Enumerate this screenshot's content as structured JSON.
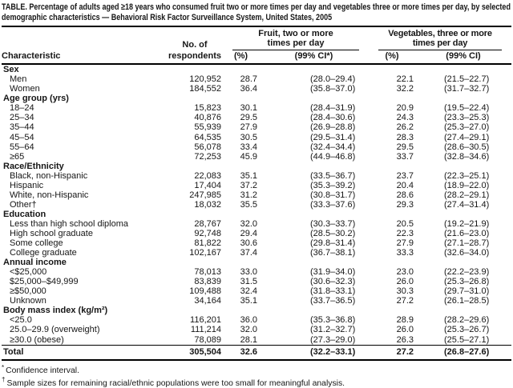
{
  "colors": {
    "background": "#ffffff",
    "text": "#161616",
    "rule": "#000000"
  },
  "title": "TABLE. Percentage of adults aged ≥18 years who consumed fruit two or more times per day and vegetables three or more times per day, by selected demographic characteristics — Behavioral Risk Factor Surveillance System, United States, 2005",
  "header": {
    "characteristic": "Characteristic",
    "respondents_line1": "No. of",
    "respondents_line2": "respondents",
    "fruit_group": "Fruit, two or more times per day",
    "veg_group": "Vegetables, three or more times per day",
    "fruit_pct": "(%)",
    "fruit_ci": "(99% CI*)",
    "veg_pct": "(%)",
    "veg_ci": "(99% CI)"
  },
  "table": {
    "sections": [
      {
        "header": "Sex",
        "rows": [
          {
            "label": "Men",
            "respondents": "120,952",
            "fruit_pct": "28.7",
            "fruit_ci": "(28.0–29.4)",
            "veg_pct": "22.1",
            "veg_ci": "(21.5–22.7)"
          },
          {
            "label": "Women",
            "respondents": "184,552",
            "fruit_pct": "36.4",
            "fruit_ci": "(35.8–37.0)",
            "veg_pct": "32.2",
            "veg_ci": "(31.7–32.7)"
          }
        ]
      },
      {
        "header": "Age group (yrs)",
        "rows": [
          {
            "label": "18–24",
            "respondents": "15,823",
            "fruit_pct": "30.1",
            "fruit_ci": "(28.4–31.9)",
            "veg_pct": "20.9",
            "veg_ci": "(19.5–22.4)"
          },
          {
            "label": "25–34",
            "respondents": "40,876",
            "fruit_pct": "29.5",
            "fruit_ci": "(28.4–30.6)",
            "veg_pct": "24.3",
            "veg_ci": "(23.3–25.3)"
          },
          {
            "label": "35–44",
            "respondents": "55,939",
            "fruit_pct": "27.9",
            "fruit_ci": "(26.9–28.8)",
            "veg_pct": "26.2",
            "veg_ci": "(25.3–27.0)"
          },
          {
            "label": "45–54",
            "respondents": "64,535",
            "fruit_pct": "30.5",
            "fruit_ci": "(29.5–31.4)",
            "veg_pct": "28.3",
            "veg_ci": "(27.4–29.1)"
          },
          {
            "label": "55–64",
            "respondents": "56,078",
            "fruit_pct": "33.4",
            "fruit_ci": "(32.4–34.4)",
            "veg_pct": "29.5",
            "veg_ci": "(28.6–30.5)"
          },
          {
            "label": "≥65",
            "respondents": "72,253",
            "fruit_pct": "45.9",
            "fruit_ci": "(44.9–46.8)",
            "veg_pct": "33.7",
            "veg_ci": "(32.8–34.6)"
          }
        ]
      },
      {
        "header": "Race/Ethnicity",
        "rows": [
          {
            "label": "Black, non-Hispanic",
            "respondents": "22,083",
            "fruit_pct": "35.1",
            "fruit_ci": "(33.5–36.7)",
            "veg_pct": "23.7",
            "veg_ci": "(22.3–25.1)"
          },
          {
            "label": "Hispanic",
            "respondents": "17,404",
            "fruit_pct": "37.2",
            "fruit_ci": "(35.3–39.2)",
            "veg_pct": "20.4",
            "veg_ci": "(18.9–22.0)"
          },
          {
            "label": "White, non-Hispanic",
            "respondents": "247,985",
            "fruit_pct": "31.2",
            "fruit_ci": "(30.8–31.7)",
            "veg_pct": "28.6",
            "veg_ci": "(28.2–29.1)"
          },
          {
            "label": "Other†",
            "respondents": "18,032",
            "fruit_pct": "35.5",
            "fruit_ci": "(33.3–37.6)",
            "veg_pct": "29.3",
            "veg_ci": "(27.4–31.4)"
          }
        ]
      },
      {
        "header": "Education",
        "rows": [
          {
            "label": "Less than high school diploma",
            "respondents": "28,767",
            "fruit_pct": "32.0",
            "fruit_ci": "(30.3–33.7)",
            "veg_pct": "20.5",
            "veg_ci": "(19.2–21.9)"
          },
          {
            "label": "High school graduate",
            "respondents": "92,748",
            "fruit_pct": "29.4",
            "fruit_ci": "(28.5–30.2)",
            "veg_pct": "22.3",
            "veg_ci": "(21.6–23.0)"
          },
          {
            "label": "Some college",
            "respondents": "81,822",
            "fruit_pct": "30.6",
            "fruit_ci": "(29.8–31.4)",
            "veg_pct": "27.9",
            "veg_ci": "(27.1–28.7)"
          },
          {
            "label": "College graduate",
            "respondents": "102,167",
            "fruit_pct": "37.4",
            "fruit_ci": "(36.7–38.1)",
            "veg_pct": "33.3",
            "veg_ci": "(32.6–34.0)"
          }
        ]
      },
      {
        "header": "Annual income",
        "rows": [
          {
            "label": "<$25,000",
            "respondents": "78,013",
            "fruit_pct": "33.0",
            "fruit_ci": "(31.9–34.0)",
            "veg_pct": "23.0",
            "veg_ci": "(22.2–23.9)"
          },
          {
            "label": "$25,000–$49,999",
            "respondents": "83,839",
            "fruit_pct": "31.5",
            "fruit_ci": "(30.6–32.3)",
            "veg_pct": "26.0",
            "veg_ci": "(25.3–26.8)"
          },
          {
            "label": "≥$50,000",
            "respondents": "109,488",
            "fruit_pct": "32.4",
            "fruit_ci": "(31.8–33.1)",
            "veg_pct": "30.3",
            "veg_ci": "(29.7–31.0)"
          },
          {
            "label": "Unknown",
            "respondents": "34,164",
            "fruit_pct": "35.1",
            "fruit_ci": "(33.7–36.5)",
            "veg_pct": "27.2",
            "veg_ci": "(26.1–28.5)"
          }
        ]
      },
      {
        "header": "Body mass index (kg/m²)",
        "rows": [
          {
            "label": "<25.0",
            "respondents": "116,201",
            "fruit_pct": "36.0",
            "fruit_ci": "(35.3–36.8)",
            "veg_pct": "28.9",
            "veg_ci": "(28.2–29.6)"
          },
          {
            "label": "25.0–29.9 (overweight)",
            "respondents": "111,214",
            "fruit_pct": "32.0",
            "fruit_ci": "(31.2–32.7)",
            "veg_pct": "26.0",
            "veg_ci": "(25.3–26.7)"
          },
          {
            "label": "≥30.0 (obese)",
            "respondents": "78,089",
            "fruit_pct": "28.1",
            "fruit_ci": "(27.3–29.0)",
            "veg_pct": "26.3",
            "veg_ci": "(25.5–27.1)"
          }
        ]
      }
    ],
    "total": {
      "label": "Total",
      "respondents": "305,504",
      "fruit_pct": "32.6",
      "fruit_ci": "(32.2–33.1)",
      "veg_pct": "27.2",
      "veg_ci": "(26.8–27.6)"
    }
  },
  "footnotes": [
    {
      "marker": "*",
      "text": "Confidence interval."
    },
    {
      "marker": "†",
      "text": "Sample sizes for remaining racial/ethnic populations were too small for meaningful analysis."
    }
  ]
}
